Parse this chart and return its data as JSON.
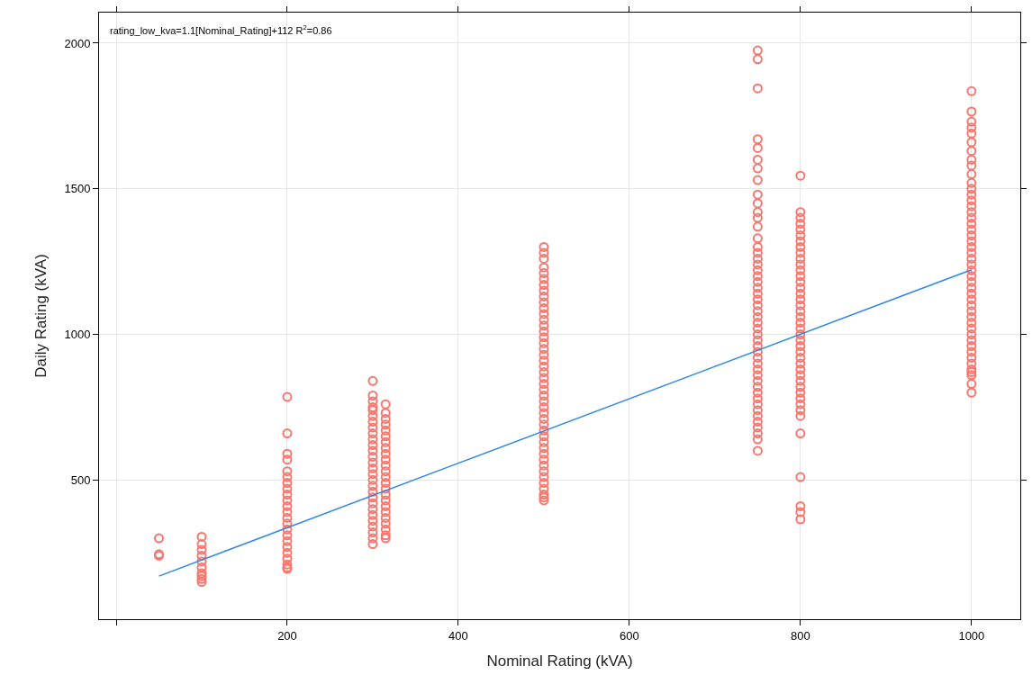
{
  "chart_data": {
    "type": "scatter",
    "xlabel": "Nominal Rating (kVA)",
    "ylabel": "Daily Rating (kVA)",
    "annotations": [
      "rating_low_kva=1.1[Nominal_Rating]+112 R$^{2}$=0.86"
    ],
    "xlim": [
      -20,
      1057
    ],
    "ylim": [
      22,
      2105
    ],
    "xticks": [
      {
        "value": 0,
        "label": null
      },
      200,
      400,
      600,
      800,
      1000
    ],
    "yticks": [
      500,
      1000,
      1500,
      2000
    ],
    "grid": true,
    "series": [
      {
        "color": "#f8766d",
        "marker": "circle",
        "x": [
          50,
          50,
          50,
          100,
          100,
          100,
          100,
          100,
          100,
          100,
          100,
          100,
          100,
          200,
          200,
          200,
          200,
          200,
          200,
          200,
          200,
          200,
          200,
          200,
          200,
          200,
          200,
          200,
          200,
          200,
          200,
          200,
          200,
          200,
          200,
          200,
          300,
          300,
          300,
          300,
          300,
          300,
          300,
          300,
          300,
          300,
          300,
          300,
          300,
          300,
          300,
          300,
          300,
          300,
          300,
          300,
          300,
          300,
          300,
          300,
          300,
          300,
          300,
          300,
          315,
          315,
          315,
          315,
          315,
          315,
          315,
          315,
          315,
          315,
          315,
          315,
          315,
          315,
          315,
          315,
          315,
          315,
          315,
          315,
          315,
          315,
          315,
          315,
          500,
          500,
          500,
          500,
          500,
          500,
          500,
          500,
          500,
          500,
          500,
          500,
          500,
          500,
          500,
          500,
          500,
          500,
          500,
          500,
          500,
          500,
          500,
          500,
          500,
          500,
          500,
          500,
          500,
          500,
          500,
          500,
          500,
          500,
          500,
          500,
          500,
          500,
          500,
          500,
          500,
          500,
          500,
          500,
          500,
          750,
          750,
          750,
          750,
          750,
          750,
          750,
          750,
          750,
          750,
          750,
          750,
          750,
          750,
          750,
          750,
          750,
          750,
          750,
          750,
          750,
          750,
          750,
          750,
          750,
          750,
          750,
          750,
          750,
          750,
          750,
          750,
          750,
          750,
          750,
          750,
          750,
          750,
          750,
          750,
          750,
          750,
          750,
          750,
          750,
          750,
          750,
          750,
          750,
          800,
          800,
          800,
          800,
          800,
          800,
          800,
          800,
          800,
          800,
          800,
          800,
          800,
          800,
          800,
          800,
          800,
          800,
          800,
          800,
          800,
          800,
          800,
          800,
          800,
          800,
          800,
          800,
          800,
          800,
          800,
          800,
          800,
          800,
          800,
          800,
          800,
          800,
          800,
          800,
          800,
          800,
          1000,
          1000,
          1000,
          1000,
          1000,
          1000,
          1000,
          1000,
          1000,
          1000,
          1000,
          1000,
          1000,
          1000,
          1000,
          1000,
          1000,
          1000,
          1000,
          1000,
          1000,
          1000,
          1000,
          1000,
          1000,
          1000,
          1000,
          1000,
          1000,
          1000,
          1000,
          1000,
          1000,
          1000,
          1000,
          1000,
          1000,
          1000,
          1000,
          1000,
          1000,
          1000,
          1000,
          1000,
          1000,
          1000,
          1000
        ],
        "values": [
          300,
          245,
          240,
          305,
          280,
          260,
          240,
          220,
          200,
          180,
          170,
          160,
          150,
          785,
          660,
          590,
          570,
          530,
          510,
          490,
          470,
          450,
          430,
          410,
          390,
          370,
          350,
          330,
          310,
          290,
          270,
          250,
          230,
          210,
          200,
          195,
          840,
          790,
          770,
          750,
          740,
          720,
          700,
          680,
          660,
          640,
          620,
          600,
          580,
          560,
          540,
          520,
          500,
          480,
          460,
          440,
          420,
          400,
          380,
          360,
          340,
          320,
          300,
          280,
          760,
          730,
          710,
          690,
          670,
          650,
          630,
          610,
          590,
          570,
          550,
          530,
          510,
          490,
          470,
          450,
          430,
          410,
          390,
          370,
          350,
          330,
          310,
          300,
          1300,
          1280,
          1260,
          1230,
          1210,
          1190,
          1170,
          1150,
          1130,
          1110,
          1090,
          1070,
          1050,
          1030,
          1010,
          990,
          970,
          950,
          930,
          910,
          890,
          870,
          850,
          830,
          810,
          790,
          770,
          750,
          730,
          710,
          690,
          670,
          650,
          630,
          610,
          590,
          570,
          550,
          530,
          510,
          490,
          470,
          450,
          440,
          430,
          1975,
          1945,
          1845,
          1670,
          1640,
          1600,
          1570,
          1530,
          1480,
          1450,
          1420,
          1400,
          1370,
          1330,
          1300,
          1280,
          1260,
          1240,
          1220,
          1200,
          1180,
          1160,
          1140,
          1120,
          1100,
          1080,
          1060,
          1040,
          1020,
          1000,
          980,
          960,
          940,
          920,
          900,
          880,
          860,
          840,
          820,
          800,
          780,
          760,
          740,
          720,
          700,
          680,
          660,
          640,
          600,
          1545,
          1420,
          1400,
          1380,
          1360,
          1340,
          1320,
          1300,
          1280,
          1260,
          1240,
          1220,
          1200,
          1180,
          1160,
          1140,
          1120,
          1100,
          1080,
          1060,
          1040,
          1020,
          1000,
          980,
          960,
          940,
          920,
          900,
          880,
          860,
          840,
          820,
          800,
          780,
          760,
          740,
          720,
          660,
          510,
          410,
          390,
          365,
          1835,
          1765,
          1730,
          1710,
          1690,
          1660,
          1630,
          1600,
          1580,
          1550,
          1520,
          1500,
          1480,
          1460,
          1440,
          1420,
          1400,
          1380,
          1360,
          1340,
          1320,
          1300,
          1280,
          1260,
          1240,
          1220,
          1200,
          1180,
          1160,
          1140,
          1120,
          1100,
          1080,
          1060,
          1040,
          1020,
          1000,
          980,
          960,
          940,
          920,
          900,
          880,
          870,
          860,
          830,
          800
        ]
      },
      {
        "type": "line",
        "color": "#3288e6",
        "marker": "none",
        "line_style": "solid",
        "x": [
          50,
          1000
        ],
        "values": [
          170,
          1222
        ]
      }
    ]
  }
}
